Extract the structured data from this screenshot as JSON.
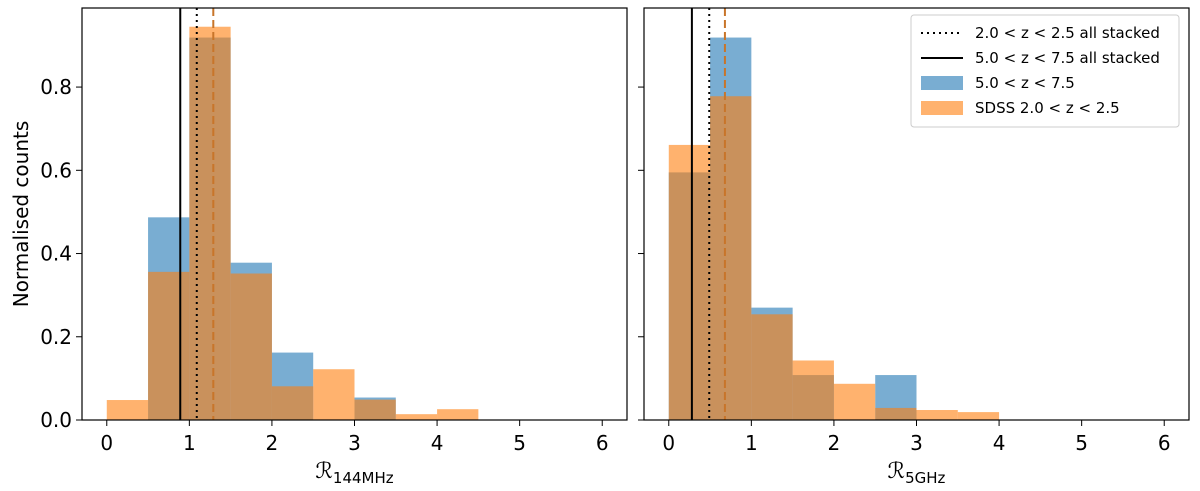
{
  "colors": {
    "blue": "#1f77b4",
    "orange": "#ff7f0e",
    "median_dashed": "#c8752a"
  },
  "ylabel": "Normalised counts",
  "chart_data": [
    {
      "type": "bar",
      "panel": "left",
      "xlabel_main": "ℛ",
      "xlabel_sub": "144MHz",
      "xlim": [
        -0.3,
        6.3
      ],
      "ylim": [
        0,
        0.99
      ],
      "xticks": [
        "0",
        "1",
        "2",
        "3",
        "4",
        "5",
        "6"
      ],
      "yticks": [
        "0.0",
        "0.2",
        "0.4",
        "0.6",
        "0.8"
      ],
      "bin_edges": [
        0,
        0.5,
        1.0,
        1.5,
        2.0,
        2.5,
        3.0,
        3.5,
        4.0,
        4.5
      ],
      "series": [
        {
          "name": "5.0 < z < 7.5",
          "color": "#1f77b4",
          "values": [
            0,
            0.487,
            0.919,
            0.378,
            0.162,
            0,
            0.054,
            0,
            0
          ]
        },
        {
          "name": "SDSS 2.0 < z < 2.5",
          "color": "#ff7f0e",
          "values": [
            0.048,
            0.356,
            0.945,
            0.352,
            0.081,
            0.122,
            0.049,
            0.014,
            0.026
          ]
        }
      ],
      "vlines": [
        {
          "label": "5.0 < z < 7.5 all stacked",
          "x": 0.89,
          "style": "solid",
          "color": "#000000"
        },
        {
          "label": "2.0 < z < 2.5 all stacked",
          "x": 1.09,
          "style": "dotted",
          "color": "#000000"
        },
        {
          "label": "",
          "x": 1.29,
          "style": "dashed",
          "color": "#c8752a"
        }
      ]
    },
    {
      "type": "bar",
      "panel": "right",
      "xlabel_main": "ℛ",
      "xlabel_sub": "5GHz",
      "xlim": [
        -0.3,
        6.3
      ],
      "ylim": [
        0,
        0.99
      ],
      "xticks": [
        "0",
        "1",
        "2",
        "3",
        "4",
        "5",
        "6"
      ],
      "yticks": [
        "0.0",
        "0.2",
        "0.4",
        "0.6",
        "0.8"
      ],
      "bin_edges": [
        0,
        0.5,
        1.0,
        1.5,
        2.0,
        2.5,
        3.0,
        3.5,
        4.0
      ],
      "series": [
        {
          "name": "5.0 < z < 7.5",
          "color": "#1f77b4",
          "values": [
            0.595,
            0.919,
            0.27,
            0.108,
            0,
            0.108,
            0,
            0
          ]
        },
        {
          "name": "SDSS 2.0 < z < 2.5",
          "color": "#ff7f0e",
          "values": [
            0.661,
            0.778,
            0.254,
            0.143,
            0.087,
            0.029,
            0.024,
            0.019
          ]
        }
      ],
      "vlines": [
        {
          "label": "5.0 < z < 7.5 all stacked",
          "x": 0.28,
          "style": "solid",
          "color": "#000000"
        },
        {
          "label": "2.0 < z < 2.5 all stacked",
          "x": 0.49,
          "style": "dotted",
          "color": "#000000"
        },
        {
          "label": "",
          "x": 0.68,
          "style": "dashed",
          "color": "#c8752a"
        }
      ],
      "legend": {
        "placement": "top-right",
        "entries": [
          {
            "label": "2.0 < z < 2.5 all stacked",
            "kind": "dotted",
            "color": "#000000"
          },
          {
            "label": "5.0 < z < 7.5 all stacked",
            "kind": "solid",
            "color": "#000000"
          },
          {
            "label": "5.0 < z < 7.5",
            "kind": "patch",
            "color": "#1f77b4"
          },
          {
            "label": "SDSS 2.0 < z < 2.5",
            "kind": "patch",
            "color": "#ff7f0e"
          }
        ]
      }
    }
  ]
}
